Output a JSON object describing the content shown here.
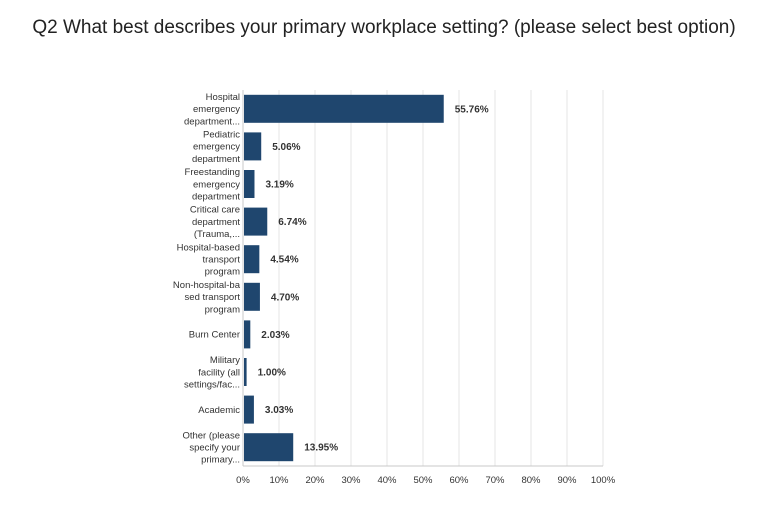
{
  "chart_data": {
    "type": "bar",
    "orientation": "horizontal",
    "title": "Q2 What best describes your primary workplace setting? (please select best option)",
    "categories": [
      [
        "Hospital",
        "emergency",
        "department..."
      ],
      [
        "Pediatric",
        "emergency",
        "department"
      ],
      [
        "Freestanding",
        "emergency",
        "department"
      ],
      [
        "Critical care",
        "department",
        "(Trauma,..."
      ],
      [
        "Hospital-based",
        "transport",
        "program"
      ],
      [
        "Non-hospital-ba",
        "sed transport",
        "program"
      ],
      [
        "Burn Center"
      ],
      [
        "Military",
        "facility (all",
        "settings/fac..."
      ],
      [
        "Academic"
      ],
      [
        "Other (please",
        "specify your",
        "primary..."
      ]
    ],
    "values": [
      55.76,
      5.06,
      3.19,
      6.74,
      4.54,
      4.7,
      2.03,
      1.0,
      3.03,
      13.95
    ],
    "value_labels": [
      "55.76%",
      "5.06%",
      "3.19%",
      "6.74%",
      "4.54%",
      "4.70%",
      "2.03%",
      "1.00%",
      "3.03%",
      "13.95%"
    ],
    "xlim": [
      0,
      100
    ],
    "xticks": [
      "0%",
      "10%",
      "20%",
      "30%",
      "40%",
      "50%",
      "60%",
      "70%",
      "80%",
      "90%",
      "100%"
    ],
    "grid": true,
    "colors": {
      "bar": "#1f466e",
      "grid": "#e6e6e6",
      "axis": "#c8c8c8",
      "text": "#333333"
    }
  }
}
